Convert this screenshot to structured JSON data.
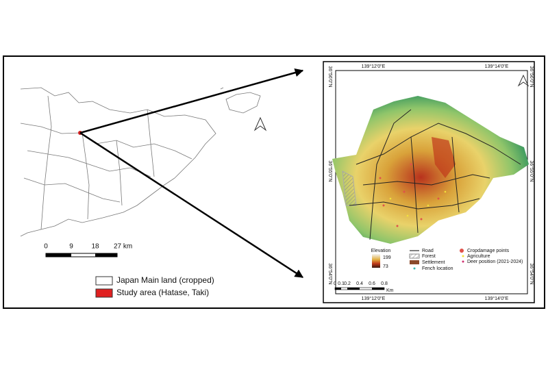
{
  "left_map": {
    "scale_labels": [
      "0",
      "9",
      "18",
      "27 km"
    ],
    "legend": [
      "Japan Main land (cropped)",
      "Study area (Hatase, Taki)"
    ]
  },
  "right_map": {
    "top_lon": [
      "139°12'0\"E",
      "139°14'0\"E"
    ],
    "bottom_lon": [
      "139°12'0\"E",
      "139°14'0\"E"
    ],
    "left_lat": [
      "36°56'0\"N",
      "36°55'0\"N",
      "36°54'0\"N"
    ],
    "right_lat": [
      "36°56'0\"N",
      "36°55'0\"N",
      "36°54'0\"N"
    ],
    "legend": {
      "elevation_title": "Elevation",
      "elevation_high": "199",
      "elevation_low": "73",
      "road": "Road",
      "forest": "Forest",
      "settlement": "Settlement",
      "fence": "Fench location",
      "cropdamage": "Cropdamage points",
      "agriculture": "Agriculture",
      "deer": "Deer position (2021-2024)"
    },
    "scale_labels": [
      "0",
      "0.1",
      "0.2",
      "0.4",
      "0.6",
      "0.8"
    ],
    "scale_unit": "Km"
  }
}
